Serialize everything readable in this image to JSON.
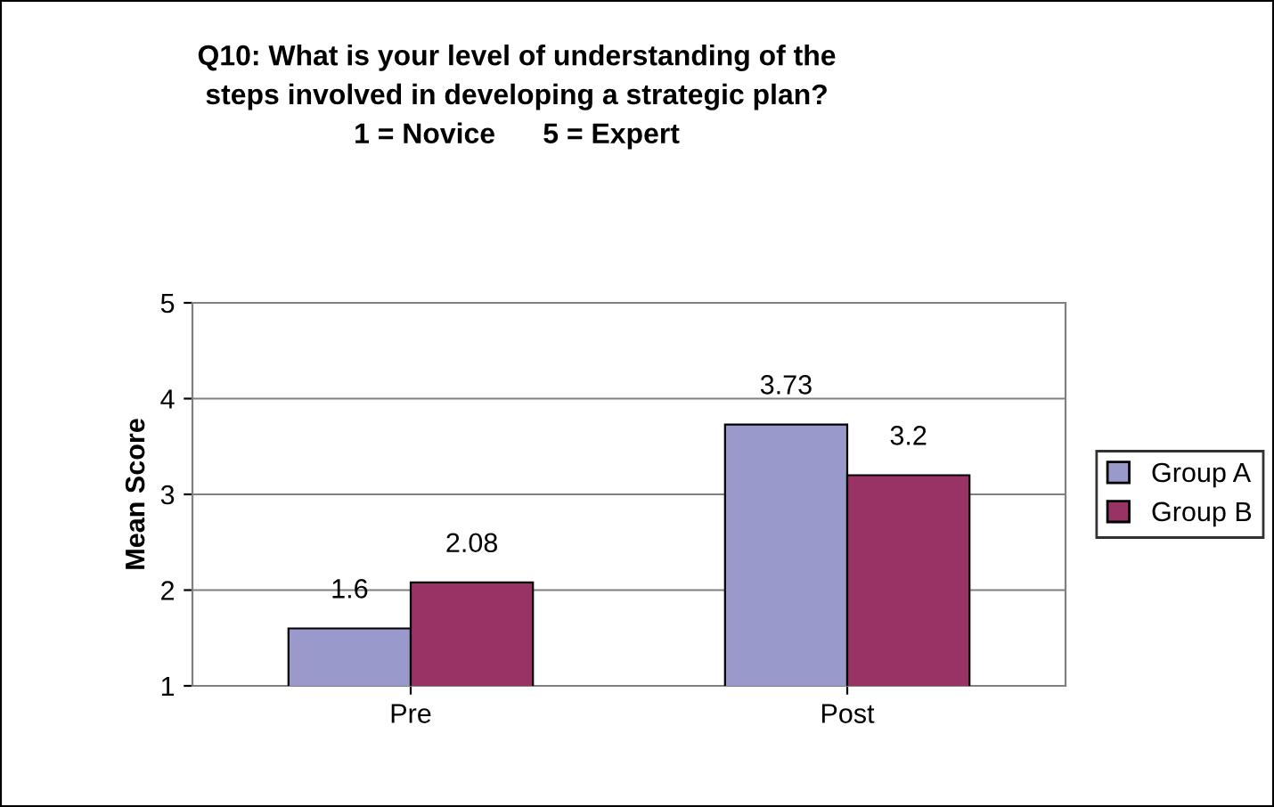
{
  "chart_data": {
    "type": "bar",
    "title": "Q10: What is your level of understanding of the\nsteps involved in developing a strategic plan?\n1 = Novice      5 = Expert",
    "ylabel": "Mean Score",
    "categories": [
      "Pre",
      "Post"
    ],
    "series": [
      {
        "name": "Group A",
        "color": "#9999cc",
        "values": [
          1.6,
          3.73
        ]
      },
      {
        "name": "Group B",
        "color": "#993366",
        "values": [
          2.08,
          3.2
        ]
      }
    ],
    "ylim": [
      1,
      5
    ],
    "yticks": [
      1,
      2,
      3,
      4,
      5
    ],
    "grid": "y",
    "legend": "right",
    "data_labels": true
  }
}
